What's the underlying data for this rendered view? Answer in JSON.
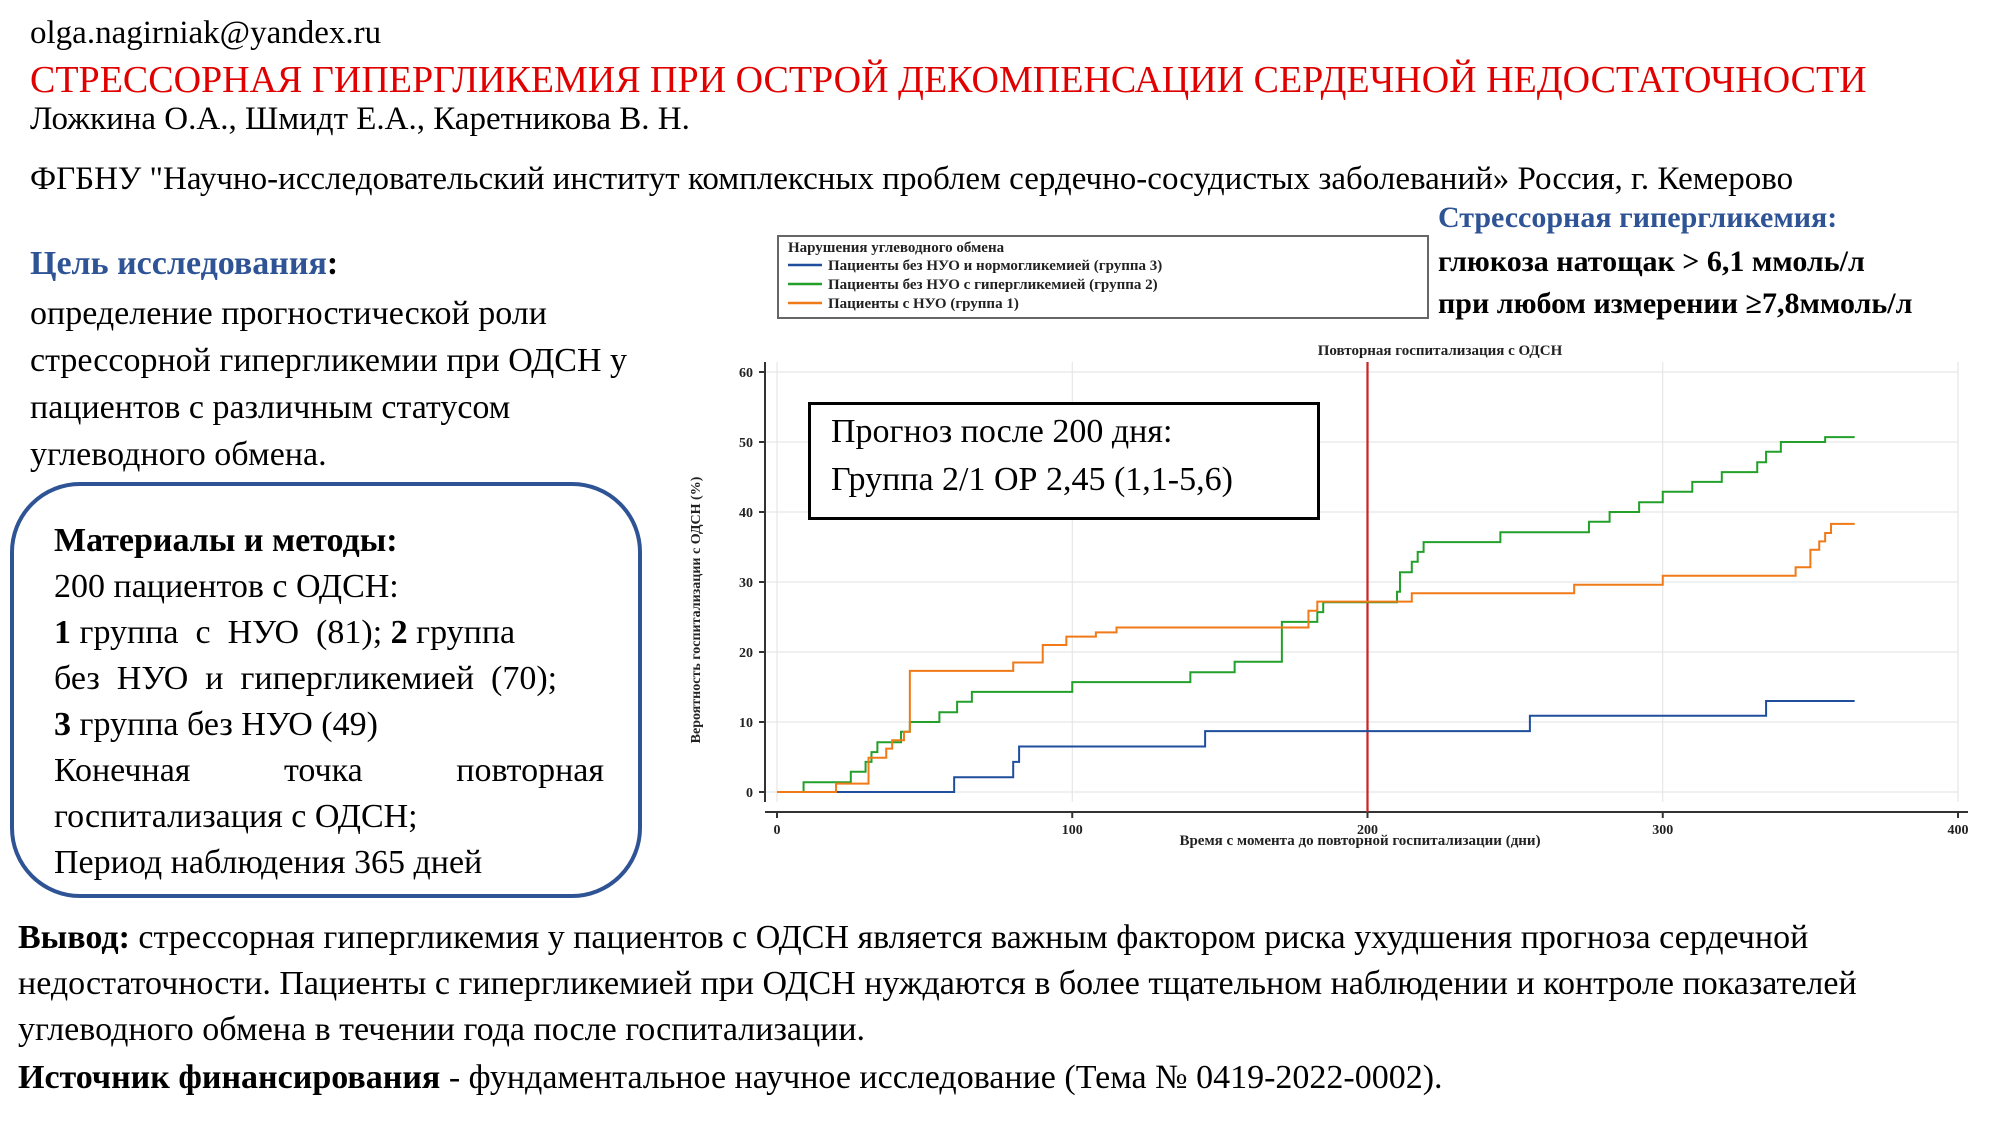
{
  "email": "olga.nagirniak@yandex.ru",
  "title": "СТРЕССОРНАЯ ГИПЕРГЛИКЕМИЯ ПРИ ОСТРОЙ ДЕКОМПЕНСАЦИИ СЕРДЕЧНОЙ  НЕДОСТАТОЧНОСТИ",
  "authors": "Ложкина О.А., Шмидт Е.А., Каретникова В. Н.",
  "affiliation": "ФГБНУ \"Научно-исследовательский институт комплексных  проблем сердечно-сосудистых заболеваний» Россия, г. Кемерово",
  "aim": {
    "heading": "Цель исследования",
    "colon": ":",
    "text": "определение прогностической роли стрессорной гипергликемии при ОДСН у пациентов с различным статусом углеводного обмена."
  },
  "definition": {
    "heading": "Стрессорная гипергликемия:",
    "line1": "глюкоза натощак > 6,1 ммоль/л",
    "line2": "при любом измерении ≥7,8ммоль/л"
  },
  "methods": {
    "heading": "Материалы и методы:",
    "line1": "200 пациентов с ОДСН:",
    "line2_bold": "1",
    "line2_rest": " группа  с  НУО  (81);",
    "line2_bold2": "2",
    "line2_rest2": " группа",
    "line3": "без  НУО  и  гипергликемией  (70);",
    "line4_bold": "3",
    "line4_rest": " группа без НУО (49)",
    "line5_words": [
      "Конечная",
      "точка",
      "повторная"
    ],
    "line6": "госпитализация с ОДСН;",
    "line7": "Период наблюдения 365 дней"
  },
  "prognosis": {
    "line1": "Прогноз после 200 дня:",
    "line2": "Группа 2/1 ОР 2,45 (1,1-5,6)"
  },
  "conclusion": {
    "label": "Вывод:",
    "text": " стрессорная гипергликемия у пациентов с ОДСН является важным фактором риска ухудшения прогноза сердечной недостаточности. Пациенты с гипергликемией при ОДСН нуждаются в более тщательном наблюдении и контроле показателей углеводного обмена в течении года после госпитализации."
  },
  "funding": {
    "label": "Источник финансирования",
    "text": " - фундаментальное научное исследование (Тема № 0419-2022-0002)."
  },
  "chart_data": {
    "type": "line",
    "subtype": "step",
    "title": "Повторная госпитализация с ОДСН",
    "xlabel": "Время с момента до повторной госпитализации (дни)",
    "ylabel": "Вероятность госпитализации с ОДСН (%)",
    "xlim": [
      0,
      400
    ],
    "ylim": [
      0,
      60
    ],
    "xticks": [
      0,
      100,
      200,
      300,
      400
    ],
    "yticks": [
      0,
      10,
      20,
      30,
      40,
      50,
      60
    ],
    "grid": true,
    "legend_title": "Нарушения углеводного обмена",
    "legend_position": "top",
    "reference_line": {
      "x": 200,
      "color": "#cc2222"
    },
    "series": [
      {
        "name": "Пациенты без НУО и нормогликемией (группа 3)",
        "color": "#1f4e9c",
        "x": [
          0,
          60,
          80,
          82,
          145,
          255,
          335,
          365
        ],
        "y": [
          0,
          2.1,
          4.3,
          6.5,
          8.7,
          10.9,
          13.0,
          13.0
        ]
      },
      {
        "name": "Пациенты без НУО с гипергликемией (группа 2)",
        "color": "#22a02a",
        "x": [
          0,
          9,
          25,
          30,
          32,
          34,
          37,
          42,
          45,
          48,
          55,
          61,
          66,
          70,
          100,
          120,
          140,
          155,
          170,
          171,
          183,
          185,
          210,
          211,
          215,
          217,
          219,
          245,
          275,
          282,
          292,
          300,
          310,
          320,
          332,
          335,
          340,
          355,
          365
        ],
        "y": [
          0,
          1.4,
          2.9,
          4.3,
          5.7,
          7.1,
          7.1,
          8.6,
          10.0,
          10.0,
          11.4,
          12.9,
          14.3,
          14.3,
          15.7,
          15.7,
          17.1,
          18.6,
          18.6,
          24.3,
          25.7,
          27.1,
          28.6,
          31.4,
          32.9,
          34.3,
          35.7,
          37.1,
          38.6,
          40.0,
          41.4,
          42.9,
          44.3,
          45.7,
          47.1,
          48.6,
          50.0,
          50.7,
          50.7
        ]
      },
      {
        "name": "Пациенты с НУО (группа 1)",
        "color": "#f07a18",
        "x": [
          0,
          20,
          31,
          37,
          39,
          43,
          45,
          80,
          90,
          98,
          108,
          115,
          130,
          155,
          180,
          183,
          195,
          215,
          270,
          300,
          345,
          350,
          353,
          355,
          357,
          360,
          365
        ],
        "y": [
          0,
          1.2,
          4.9,
          6.2,
          7.4,
          8.6,
          17.3,
          18.5,
          21.0,
          22.2,
          22.8,
          23.5,
          23.5,
          23.5,
          25.9,
          27.2,
          27.2,
          28.4,
          29.6,
          30.9,
          32.1,
          34.6,
          35.8,
          37.0,
          38.3,
          38.3,
          38.3
        ]
      }
    ]
  }
}
